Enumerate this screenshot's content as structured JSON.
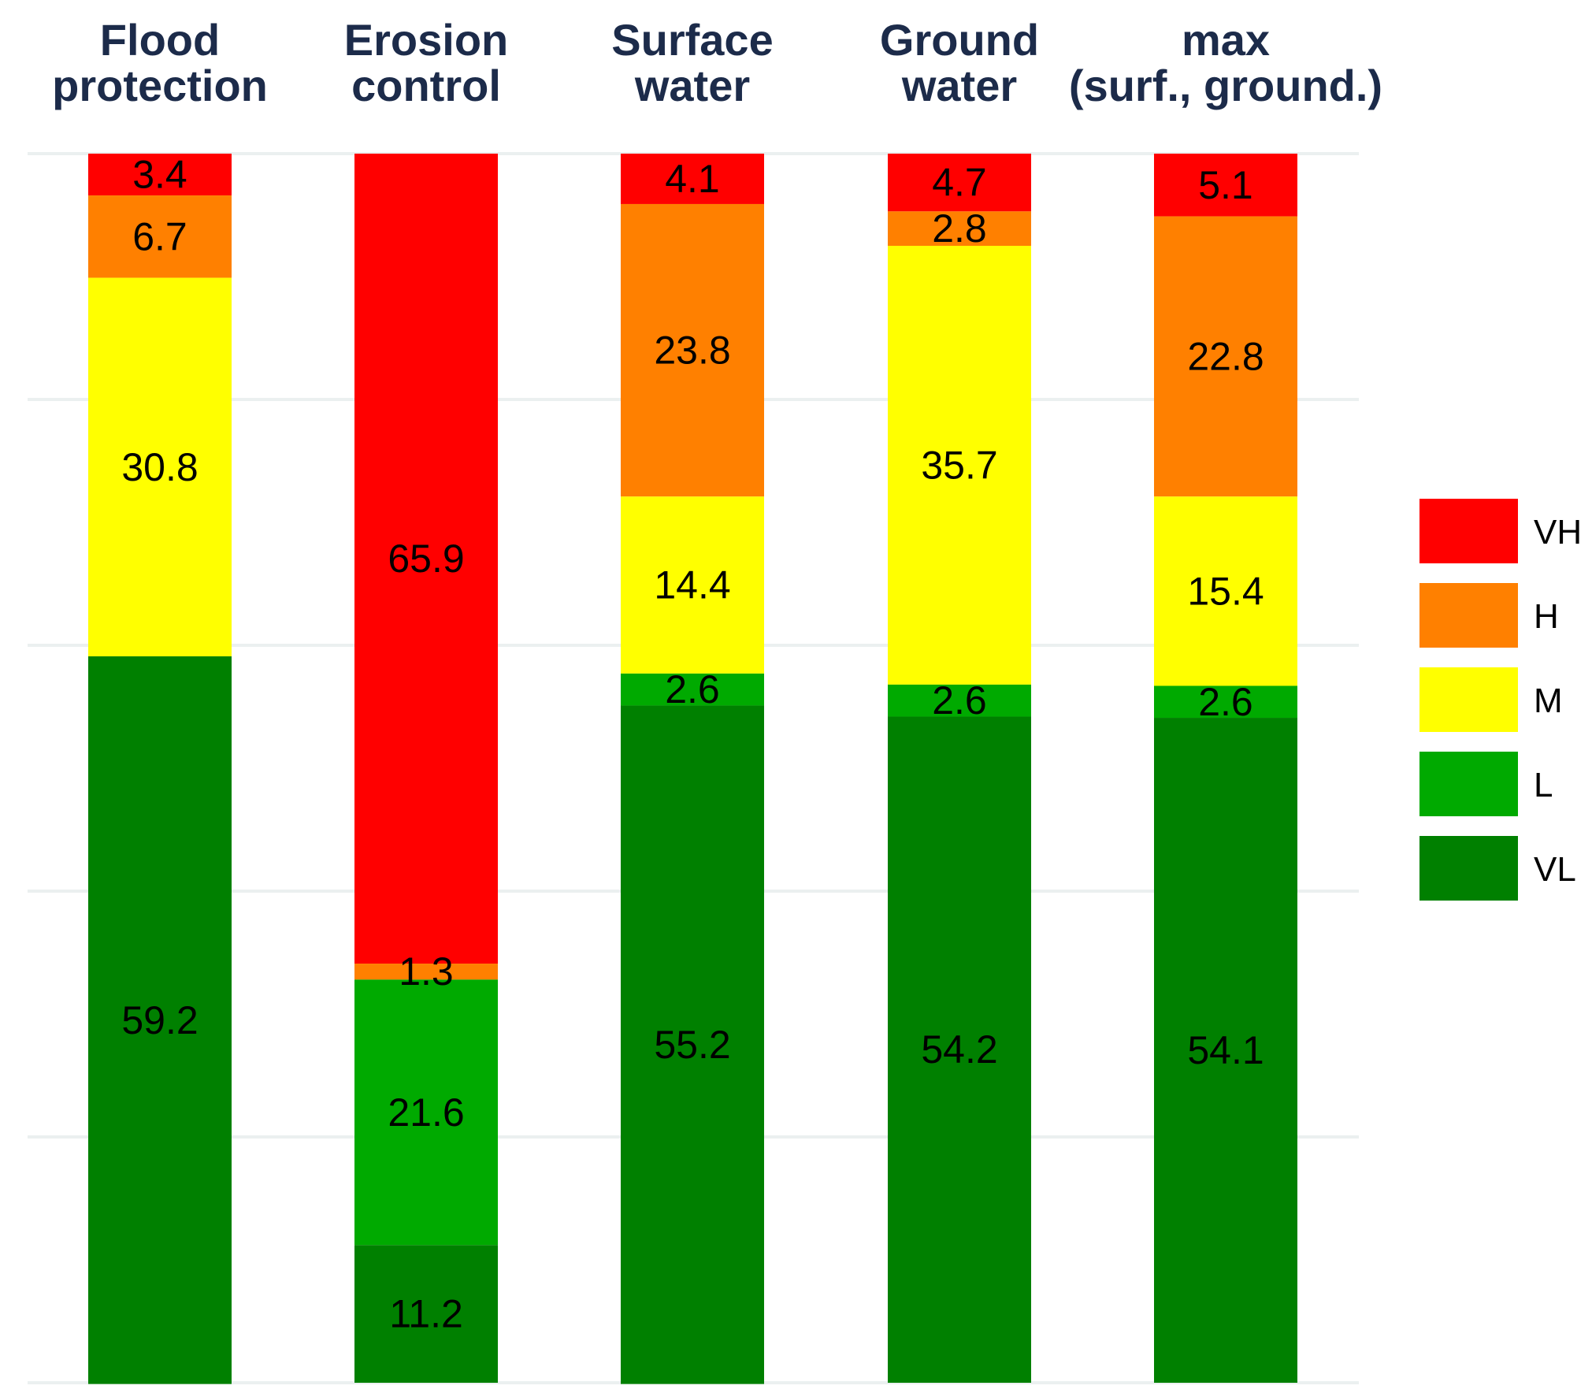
{
  "chart_data": {
    "type": "bar",
    "stacked": true,
    "orientation": "vertical",
    "categories": [
      [
        "Flood",
        "protection"
      ],
      [
        "Erosion",
        "control"
      ],
      [
        "Surface",
        "water"
      ],
      [
        "Ground",
        "water"
      ],
      [
        "max",
        "(surf., ground.)"
      ]
    ],
    "series": [
      {
        "name": "VH",
        "color": "#ff0000",
        "values": [
          3.4,
          65.9,
          4.1,
          4.7,
          5.1
        ]
      },
      {
        "name": "H",
        "color": "#ff8000",
        "values": [
          6.7,
          1.3,
          23.8,
          2.8,
          22.8
        ]
      },
      {
        "name": "M",
        "color": "#ffff00",
        "values": [
          30.8,
          0,
          14.4,
          35.7,
          15.4
        ]
      },
      {
        "name": "L",
        "color": "#00aa00",
        "values": [
          0,
          21.6,
          2.6,
          2.6,
          2.6
        ]
      },
      {
        "name": "VL",
        "color": "#008000",
        "values": [
          59.2,
          11.2,
          55.2,
          54.2,
          54.1
        ]
      }
    ],
    "value_labels": [
      [
        "3.4",
        "6.7",
        "30.8",
        "",
        "59.2"
      ],
      [
        "65.9",
        "1.3",
        "",
        "21.6",
        "11.2"
      ],
      [
        "4.1",
        "23.8",
        "14.4",
        "2.6",
        "55.2"
      ],
      [
        "4.7",
        "2.8",
        "35.7",
        "2.6",
        "54.2"
      ],
      [
        "5.1",
        "22.8",
        "15.4",
        "2.6",
        "54.1"
      ]
    ],
    "ylim": [
      0,
      100
    ],
    "grid": true,
    "legend": {
      "position": "right",
      "entries": [
        "VH",
        "H",
        "M",
        "L",
        "VL"
      ]
    },
    "title": "",
    "xlabel": "",
    "ylabel": ""
  }
}
